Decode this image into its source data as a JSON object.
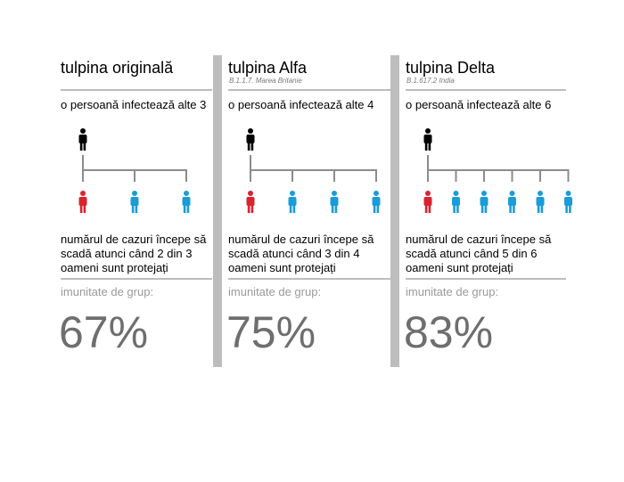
{
  "colors": {
    "infector": "#000000",
    "infected_unprotected": "#d9232e",
    "infected_protected": "#1a9cd8",
    "separator": "#bdbdbd",
    "muted_text": "#9a9a9a",
    "big_number": "#6e6e6e"
  },
  "icons": {
    "person": "person-icon"
  },
  "strains": [
    {
      "title": "tulpina originală",
      "subtitle": "",
      "rate": "o persoană infectează alte 3",
      "infected_count": 3,
      "outcome_lines": [
        "numărul de cazuri începe să",
        "scadă atunci când 2 din 3",
        "oameni sunt protejați"
      ],
      "immunity_label": "imunitate de grup:",
      "immunity_value": "67%"
    },
    {
      "title": "tulpina Alfa",
      "subtitle": "B.1.1.7. Marea Britanie",
      "rate": "o persoană infectează alte 4",
      "infected_count": 4,
      "outcome_lines": [
        "numărul de cazuri începe să",
        "scadă atunci când 3 din 4",
        "oameni sunt protejați"
      ],
      "immunity_label": "imunitate de grup:",
      "immunity_value": "75%"
    },
    {
      "title": "tulpina Delta",
      "subtitle": "B.1.617.2 India",
      "rate": "o persoană infectează alte 6",
      "infected_count": 6,
      "outcome_lines": [
        "numărul de cazuri începe să",
        "scadă atunci când 5 din 6",
        "oameni sunt protejați"
      ],
      "immunity_label": "imunitate de grup:",
      "immunity_value": "83%"
    }
  ]
}
